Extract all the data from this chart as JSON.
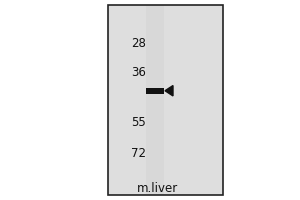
{
  "bg_color": "#ffffff",
  "gel_area_color": "#e0e0e0",
  "lane_color": "#d0d0d0",
  "lane_gradient": true,
  "border_color": "#222222",
  "band_color": "#111111",
  "marker_color": "#111111",
  "label_top": "m.liver",
  "mw_markers": [
    72,
    55,
    36,
    28
  ],
  "band_mw": 42,
  "mw_min": 22,
  "mw_max": 90,
  "fig_width": 3.0,
  "fig_height": 2.0,
  "dpi": 100,
  "label_fontsize": 8.5,
  "mw_fontsize": 8.5
}
